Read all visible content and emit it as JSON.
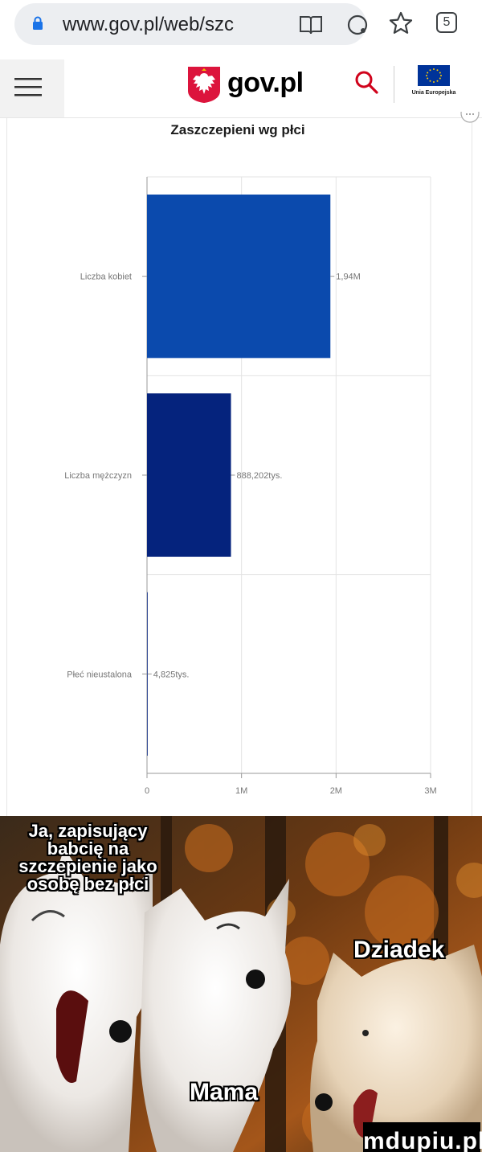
{
  "browser": {
    "url": "www.gov.pl/web/szc",
    "tab_count": "5"
  },
  "site": {
    "logo_text": "gov.pl",
    "eu_label": "Unia Europejska"
  },
  "chart_data": {
    "type": "bar",
    "orientation": "horizontal",
    "title": "Zaszczepieni wg płci",
    "categories": [
      "Liczba kobiet",
      "Liczba mężczyzn",
      "Płeć nieustalona"
    ],
    "values": [
      1940000,
      888202,
      4825
    ],
    "data_labels": [
      "1,94M",
      "888,202tys.",
      "4,825tys."
    ],
    "colors": [
      "#0b4aad",
      "#05237d",
      "#05237d"
    ],
    "xlim": [
      0,
      3000000
    ],
    "x_ticks": [
      0,
      1000000,
      2000000,
      3000000
    ],
    "x_tick_labels": [
      "0",
      "1M",
      "2M",
      "3M"
    ],
    "grid": true
  },
  "meme": {
    "caption_top": "Ja, zapisujący babcię na szczepienie jako osobę bez płci",
    "caption_right": "Dziadek",
    "caption_bottom": "Mama",
    "watermark": "mdupiu.pl"
  }
}
